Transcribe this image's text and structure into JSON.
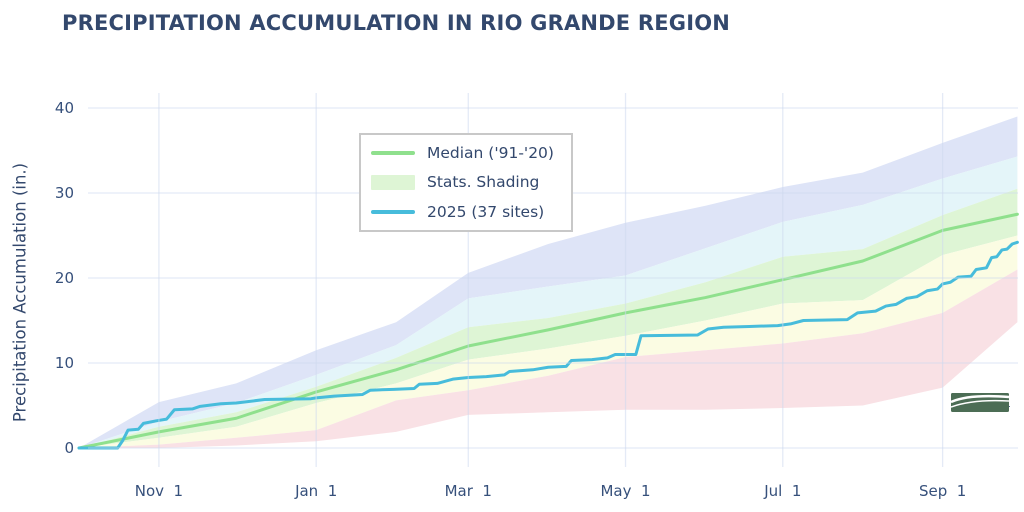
{
  "title": "PRECIPITATION ACCUMULATION IN RIO GRANDE REGION",
  "y_axis": {
    "label": "Precipitation Accumulation (in.)",
    "ticks": [
      0,
      10,
      20,
      30,
      40
    ],
    "range": [
      0,
      40
    ]
  },
  "x_axis": {
    "tick_labels": [
      "Nov  1",
      "Jan  1",
      "Mar  1",
      "May  1",
      "Jul  1",
      "Sep  1"
    ],
    "tick_days": [
      31,
      92,
      151,
      212,
      273,
      335
    ],
    "range_days": [
      0,
      364
    ]
  },
  "legend": {
    "items": [
      {
        "label": "Median ('91-'20)",
        "type": "line",
        "color": "#8fe08d"
      },
      {
        "label": "Stats. Shading",
        "type": "fill",
        "color": "#def5d5"
      },
      {
        "label": "2025 (37 sites)",
        "type": "line",
        "color": "#47bcdb"
      }
    ]
  },
  "logo": {
    "text": "USDA",
    "text_color": "#2d4677",
    "field_color": "#4c6d55"
  },
  "colors": {
    "title_text": "#33486d",
    "tick_text": "#36507b",
    "gridline": "rgba(205,217,238,0.55)",
    "legend_border": "#c8c8c8"
  },
  "chart_data": {
    "type": "area",
    "title": "PRECIPITATION ACCUMULATION IN RIO GRANDE REGION",
    "ylabel": "Precipitation Accumulation (in.)",
    "ylim": [
      0,
      40
    ],
    "grid": true,
    "legend_position": "upper-left-inside",
    "x_unit": "day of water year (Oct 1 = 0)",
    "x_days": [
      0,
      31,
      61,
      92,
      123,
      151,
      182,
      212,
      243,
      273,
      304,
      335,
      364
    ],
    "bands": [
      {
        "name": "max-to-p90",
        "color": "#dee4f7",
        "upper": [
          0,
          5.4,
          7.6,
          11.5,
          14.8,
          20.6,
          24.0,
          26.5,
          28.5,
          30.7,
          32.4,
          35.9,
          39.0
        ],
        "lower": [
          0,
          3.1,
          5.3,
          8.6,
          12.1,
          17.6,
          19.0,
          20.3,
          23.5,
          26.6,
          28.6,
          31.7,
          34.3
        ]
      },
      {
        "name": "p90-to-p70",
        "color": "#e4f5f9",
        "upper": [
          0,
          3.1,
          5.3,
          8.6,
          12.1,
          17.6,
          19.0,
          20.3,
          23.5,
          26.6,
          28.6,
          31.7,
          34.3
        ],
        "lower": [
          0,
          2.5,
          4.2,
          7.2,
          10.6,
          14.2,
          15.3,
          17.0,
          19.5,
          22.5,
          23.4,
          27.4,
          30.5
        ]
      },
      {
        "name": "stats-shading-p70-to-p30",
        "color": "#def5d5",
        "upper": [
          0,
          2.5,
          4.2,
          7.2,
          10.6,
          14.2,
          15.3,
          17.0,
          19.5,
          22.5,
          23.4,
          27.4,
          30.5
        ],
        "lower": [
          0,
          1.2,
          2.5,
          5.3,
          7.6,
          10.4,
          11.7,
          13.2,
          15.0,
          17.0,
          17.4,
          22.7,
          25.0
        ]
      },
      {
        "name": "p30-to-p10",
        "color": "#fbfce3",
        "upper": [
          0,
          1.2,
          2.5,
          5.3,
          7.6,
          10.4,
          11.7,
          13.2,
          15.0,
          17.0,
          17.4,
          22.7,
          25.0
        ],
        "lower": [
          0,
          0.4,
          1.2,
          2.1,
          5.6,
          6.8,
          8.5,
          10.7,
          11.5,
          12.3,
          13.5,
          15.9,
          21.0
        ]
      },
      {
        "name": "p10-to-min",
        "color": "#f9e1e5",
        "upper": [
          0,
          0.4,
          1.2,
          2.1,
          5.6,
          6.8,
          8.5,
          10.7,
          11.5,
          12.3,
          13.5,
          15.9,
          21.0
        ],
        "lower": [
          0,
          0.0,
          0.3,
          0.8,
          1.9,
          3.9,
          4.2,
          4.5,
          4.5,
          4.7,
          5.0,
          7.1,
          14.8
        ]
      }
    ],
    "series": [
      {
        "name": "Median ('91-'20)",
        "color": "#8fe08d",
        "width": 3,
        "x_days": [
          0,
          31,
          61,
          92,
          123,
          151,
          182,
          212,
          243,
          273,
          304,
          335,
          364
        ],
        "values": [
          0,
          1.9,
          3.5,
          6.6,
          9.2,
          12.0,
          13.9,
          15.9,
          17.7,
          19.8,
          22.0,
          25.6,
          27.5
        ]
      },
      {
        "name": "2025 (37 sites)",
        "color": "#47bcdb",
        "width": 3,
        "x_days": [
          0,
          15,
          17,
          19,
          23,
          25,
          30,
          34,
          37,
          44,
          47,
          55,
          61,
          72,
          90,
          92,
          99,
          110,
          113,
          122,
          130,
          132,
          139,
          145,
          151,
          158,
          165,
          167,
          176,
          182,
          189,
          191,
          199,
          205,
          208,
          216,
          218,
          240,
          244,
          250,
          260,
          271,
          276,
          281,
          298,
          302,
          309,
          313,
          317,
          321,
          325,
          329,
          333,
          335,
          338,
          341,
          346,
          348,
          352,
          354,
          356,
          358,
          360,
          362,
          364
        ],
        "values": [
          0,
          0,
          0.9,
          2.1,
          2.2,
          2.9,
          3.2,
          3.4,
          4.5,
          4.6,
          4.9,
          5.2,
          5.3,
          5.7,
          5.8,
          5.9,
          6.1,
          6.3,
          6.8,
          6.9,
          7.0,
          7.5,
          7.6,
          8.1,
          8.3,
          8.4,
          8.6,
          9.0,
          9.2,
          9.5,
          9.6,
          10.3,
          10.4,
          10.6,
          11.0,
          11.0,
          13.2,
          13.3,
          14.0,
          14.2,
          14.3,
          14.4,
          14.6,
          15.0,
          15.1,
          15.9,
          16.1,
          16.7,
          16.9,
          17.6,
          17.8,
          18.5,
          18.7,
          19.3,
          19.5,
          20.1,
          20.2,
          21.0,
          21.2,
          22.4,
          22.5,
          23.3,
          23.4,
          24.0,
          24.2
        ]
      }
    ]
  }
}
